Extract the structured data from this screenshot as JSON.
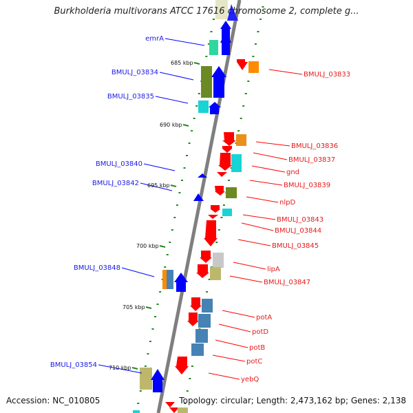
{
  "title": "Burkholderia multivorans ATCC 17616 chromosome 2, complete g...",
  "accession": "Accession: NC_010805",
  "topology": "Topology: circular; Length: 2,473,162 bp; Genes: 2,138",
  "colors": {
    "backbone": "#7f7f7f",
    "neg_strand_gene": "#0000ff",
    "pos_strand_gene": "#ff0000",
    "neg_label": "#1a1ae6",
    "pos_label": "#e61a1a",
    "tick_dots": "#1f8a1f"
  },
  "scale_ticks": [
    "685 kbp",
    "690 kbp",
    "695 kbp",
    "700 kbp",
    "705 kbp",
    "710 kbp"
  ],
  "minus_strand_labels": [
    "emrA",
    "BMULJ_03834",
    "BMULJ_03835",
    "BMULJ_03840",
    "BMULJ_03842",
    "BMULJ_03848",
    "BMULJ_03854"
  ],
  "plus_strand_labels": [
    "BMULJ_03833",
    "BMULJ_03836",
    "BMULJ_03837",
    "gnd",
    "BMULJ_03839",
    "nlpD",
    "BMULJ_03843",
    "BMULJ_03844",
    "BMULJ_03845",
    "lipA",
    "BMULJ_03847",
    "potA",
    "potD",
    "potB",
    "potC",
    "yebQ"
  ]
}
